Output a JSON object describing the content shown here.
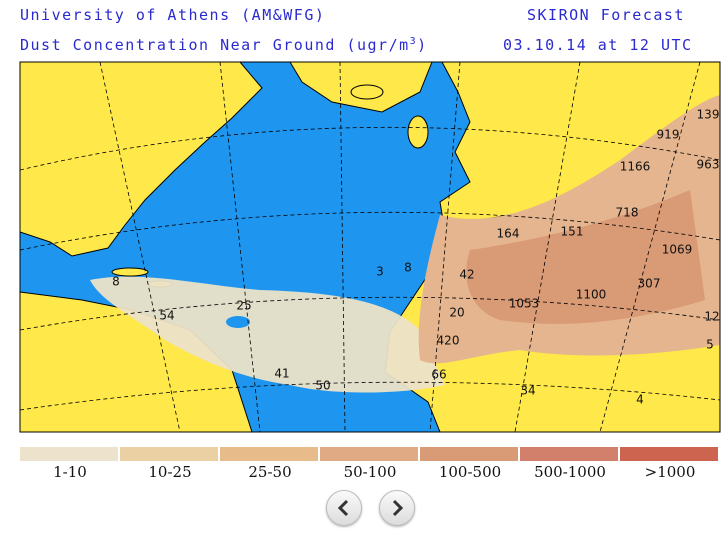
{
  "header": {
    "institution": "University of Athens (AM&WFG)",
    "product": "SKIRON Forecast",
    "title": "Dust Concentration Near Ground (ugr/m",
    "title_superscript": "3",
    "title_end": ")",
    "time": "03.10.14 at 12 UTC"
  },
  "map": {
    "labels": [
      "139",
      "919",
      "1166",
      "963",
      "718",
      "1069",
      "164",
      "151",
      "3",
      "8",
      "42",
      "307",
      "1100",
      "1053",
      "8",
      "25",
      "54",
      "20",
      "12",
      "420",
      "5",
      "41",
      "50",
      "66",
      "34",
      "4"
    ]
  },
  "legend": [
    {
      "label": "1-10",
      "color": "#ede3cc"
    },
    {
      "label": "10-25",
      "color": "#ead0a2"
    },
    {
      "label": "25-50",
      "color": "#e8bb8a"
    },
    {
      "label": "50-100",
      "color": "#e0aa84"
    },
    {
      "label": "100-500",
      "color": "#d99a76"
    },
    {
      "label": "500-1000",
      "color": "#d27f6c"
    },
    {
      "label": ">1000",
      "color": "#cc6450"
    }
  ]
}
